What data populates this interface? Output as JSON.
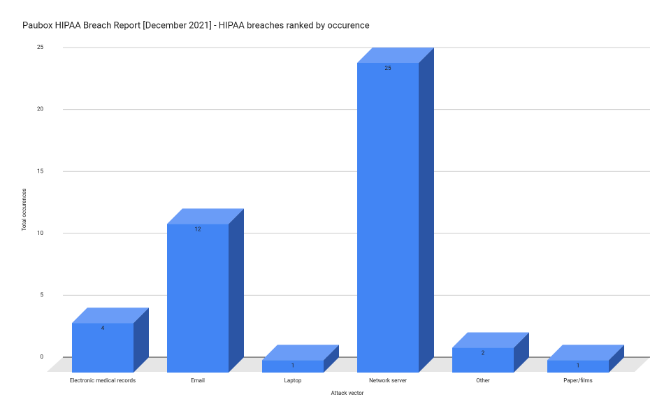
{
  "chart_data": {
    "type": "bar3d",
    "title": "Paubox HIPAA Breach Report [December 2021] - HIPAA breaches ranked by occurence",
    "x_label": "Attack vector",
    "y_label": "Total occurences",
    "categories": [
      "Electronic medical records",
      "Email",
      "Laptop",
      "Network server",
      "Other",
      "Paper/films"
    ],
    "values": [
      4,
      12,
      1,
      25,
      2,
      1
    ],
    "color": "#4285f4",
    "ylim": [
      0,
      25
    ],
    "yticks": [
      0,
      5,
      10,
      15,
      20,
      25
    ],
    "grid": true
  }
}
